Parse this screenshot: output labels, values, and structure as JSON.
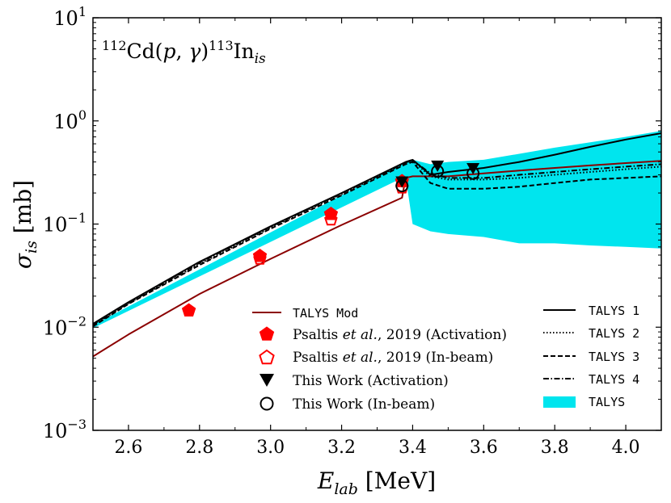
{
  "chart_data": {
    "type": "line",
    "title": "112Cd(p,γ)113In_is",
    "title_parts": {
      "pre_sup": "112",
      "base1": "Cd(",
      "p": "p",
      "sep": ", ",
      "gamma": "γ",
      "close": ")",
      "mid_sup": "113",
      "base2": "In",
      "sub": "is"
    },
    "xlabel": "E_lab [MeV]",
    "xlabel_parts": {
      "sym": "E",
      "sub": "lab",
      "unit": " [MeV]"
    },
    "ylabel": "σ_is [mb]",
    "ylabel_parts": {
      "sym": "σ",
      "sub": "is",
      "unit": " [mb]"
    },
    "xlim": [
      2.5,
      4.1
    ],
    "ylim": [
      0.001,
      10
    ],
    "yscale": "log",
    "x_ticks": [
      "2.6",
      "2.8",
      "3.0",
      "3.2",
      "3.4",
      "3.6",
      "3.8",
      "4.0"
    ],
    "x_tick_values": [
      2.6,
      2.8,
      3.0,
      3.2,
      3.4,
      3.6,
      3.8,
      4.0
    ],
    "y_ticks": [
      {
        "base": "10",
        "exp": "−3",
        "value": 0.001
      },
      {
        "base": "10",
        "exp": "−2",
        "value": 0.01
      },
      {
        "base": "10",
        "exp": "−1",
        "value": 0.1
      },
      {
        "base": "10",
        "exp": "0",
        "value": 1
      },
      {
        "base": "10",
        "exp": "1",
        "value": 10
      }
    ],
    "band": {
      "name": "TALYS",
      "color": "#00e5ee",
      "x": [
        2.5,
        3.38,
        3.4,
        3.45,
        3.5,
        3.6,
        3.7,
        3.8,
        3.9,
        4.0,
        4.1
      ],
      "upper": [
        0.0105,
        0.4,
        0.42,
        0.38,
        0.4,
        0.42,
        0.48,
        0.55,
        0.62,
        0.7,
        0.8
      ],
      "lower": [
        0.0098,
        0.29,
        0.1,
        0.085,
        0.08,
        0.075,
        0.065,
        0.065,
        0.062,
        0.06,
        0.058
      ]
    },
    "series": [
      {
        "name": "TALYS Mod",
        "color": "#8b0000",
        "style": "solid",
        "x": [
          2.5,
          2.6,
          2.8,
          3.0,
          3.2,
          3.37,
          3.38,
          3.4,
          3.45,
          3.5,
          3.6,
          3.7,
          3.8,
          3.9,
          4.0,
          4.1
        ],
        "y": [
          0.0052,
          0.0085,
          0.021,
          0.046,
          0.098,
          0.18,
          0.28,
          0.29,
          0.29,
          0.29,
          0.31,
          0.33,
          0.35,
          0.37,
          0.39,
          0.41
        ]
      },
      {
        "name": "TALYS 1",
        "color": "#000000",
        "style": "solid",
        "x": [
          2.5,
          2.6,
          2.8,
          3.0,
          3.2,
          3.38,
          3.4,
          3.45,
          3.5,
          3.6,
          3.7,
          3.8,
          3.9,
          4.0,
          4.1
        ],
        "y": [
          0.0108,
          0.0175,
          0.043,
          0.095,
          0.2,
          0.4,
          0.42,
          0.3,
          0.32,
          0.35,
          0.4,
          0.47,
          0.56,
          0.66,
          0.76
        ]
      },
      {
        "name": "TALYS 2",
        "color": "#000000",
        "style": "dotted",
        "x": [
          2.5,
          2.6,
          2.8,
          3.0,
          3.2,
          3.38,
          3.4,
          3.45,
          3.5,
          3.6,
          3.7,
          3.8,
          3.9,
          4.0,
          4.1
        ],
        "y": [
          0.0104,
          0.017,
          0.041,
          0.092,
          0.195,
          0.39,
          0.41,
          0.29,
          0.27,
          0.27,
          0.28,
          0.3,
          0.32,
          0.34,
          0.36
        ]
      },
      {
        "name": "TALYS 3",
        "color": "#000000",
        "style": "dashed",
        "x": [
          2.5,
          2.6,
          2.8,
          3.0,
          3.2,
          3.38,
          3.4,
          3.45,
          3.5,
          3.6,
          3.7,
          3.8,
          3.9,
          4.0,
          4.1
        ],
        "y": [
          0.0102,
          0.0168,
          0.04,
          0.09,
          0.19,
          0.38,
          0.4,
          0.25,
          0.22,
          0.22,
          0.23,
          0.25,
          0.27,
          0.28,
          0.29
        ]
      },
      {
        "name": "TALYS 4",
        "color": "#000000",
        "style": "dashdot",
        "x": [
          2.5,
          2.6,
          2.8,
          3.0,
          3.2,
          3.38,
          3.4,
          3.45,
          3.5,
          3.6,
          3.7,
          3.8,
          3.9,
          4.0,
          4.1
        ],
        "y": [
          0.0106,
          0.0172,
          0.042,
          0.094,
          0.198,
          0.395,
          0.415,
          0.31,
          0.28,
          0.28,
          0.3,
          0.32,
          0.34,
          0.36,
          0.38
        ]
      }
    ],
    "points": [
      {
        "name": "Psaltis et al., 2019 (Activation)",
        "marker": "pentagon-filled",
        "color": "#ff0000",
        "x": [
          2.77,
          2.97,
          3.17,
          3.37
        ],
        "y": [
          0.0145,
          0.049,
          0.125,
          0.26
        ]
      },
      {
        "name": "Psaltis et al., 2019 (In-beam)",
        "marker": "pentagon-open",
        "color": "#ff0000",
        "x": [
          2.97,
          3.17,
          3.37
        ],
        "y": [
          0.046,
          0.11,
          0.225
        ]
      },
      {
        "name": "This Work (Activation)",
        "marker": "triangle-down",
        "color": "#000000",
        "x": [
          3.37,
          3.47,
          3.57
        ],
        "y": [
          0.26,
          0.37,
          0.35
        ]
      },
      {
        "name": "This Work (In-beam)",
        "marker": "circle-open",
        "color": "#000000",
        "x": [
          3.37,
          3.47,
          3.57
        ],
        "y": [
          0.235,
          0.325,
          0.31
        ]
      }
    ],
    "legend_left": [
      {
        "label_code": "TALYS Mod",
        "kind": "line",
        "color": "#8b0000",
        "style": "solid"
      },
      {
        "label_text": "Psaltis ",
        "label_em": "et al.",
        "label_rest": ", 2019 (Activation)",
        "kind": "pentagon-filled",
        "color": "#ff0000"
      },
      {
        "label_text": "Psaltis ",
        "label_em": "et al.",
        "label_rest": ", 2019 (In-beam)",
        "kind": "pentagon-open",
        "color": "#ff0000"
      },
      {
        "label_text": "This Work (Activation)",
        "kind": "triangle-down",
        "color": "#000000"
      },
      {
        "label_text": "This Work (In-beam)",
        "kind": "circle-open",
        "color": "#000000"
      }
    ],
    "legend_right": [
      {
        "label_code": "TALYS 1",
        "kind": "line",
        "style": "solid"
      },
      {
        "label_code": "TALYS 2",
        "kind": "line",
        "style": "dotted"
      },
      {
        "label_code": "TALYS 3",
        "kind": "line",
        "style": "dashed"
      },
      {
        "label_code": "TALYS 4",
        "kind": "line",
        "style": "dashdot"
      },
      {
        "label_code": "TALYS",
        "kind": "band",
        "color": "#00e5ee"
      }
    ]
  }
}
